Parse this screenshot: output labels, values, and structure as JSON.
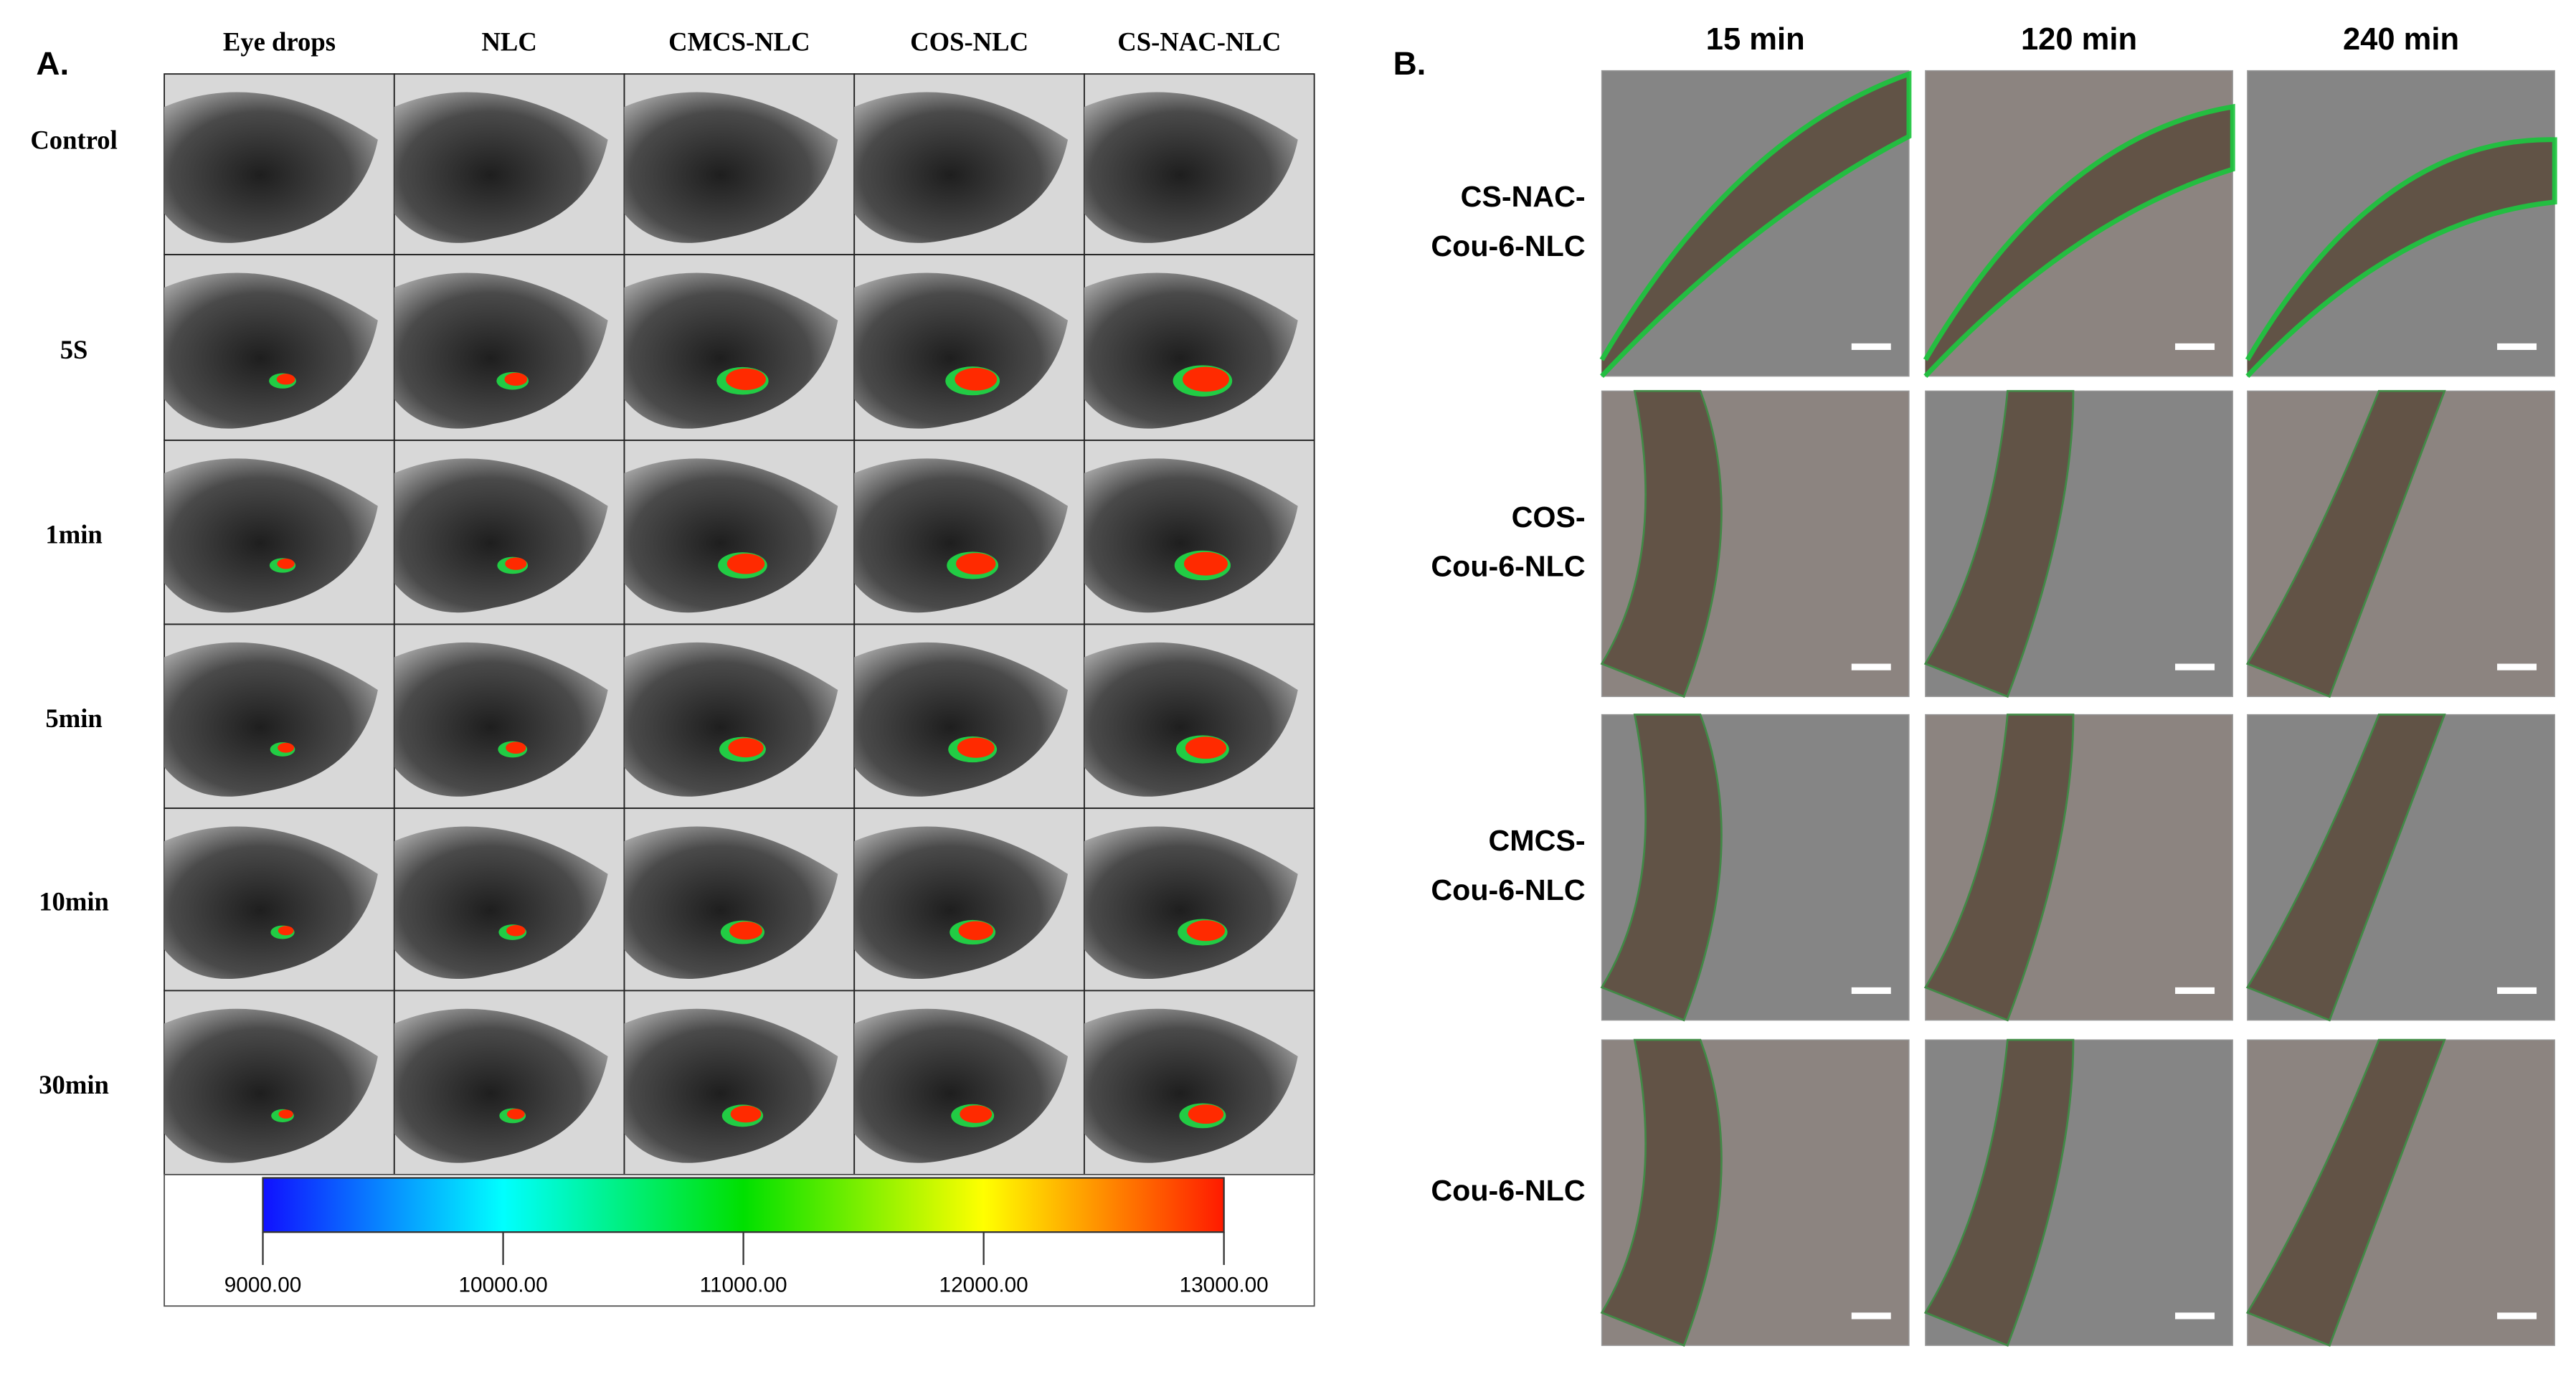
{
  "panel_a": {
    "label": "A.",
    "columns": [
      "Eye drops",
      "NLC",
      "CMCS-NLC",
      "COS-NLC",
      "CS-NAC-NLC"
    ],
    "rows": [
      "Control",
      "5S",
      "1min",
      "5min",
      "10min",
      "30min"
    ],
    "colorbar": {
      "lim": [
        9000,
        13000
      ],
      "ticks": [
        {
          "value": 9000,
          "label": "9000.00"
        },
        {
          "value": 10000,
          "label": "10000.00"
        },
        {
          "value": 11000,
          "label": "11000.00"
        },
        {
          "value": 12000,
          "label": "12000.00"
        },
        {
          "value": 13000,
          "label": "13000.00"
        }
      ]
    }
  },
  "panel_b": {
    "label": "B.",
    "columns": [
      "15 min",
      "120 min",
      "240 min"
    ],
    "rows": [
      [
        "CS-NAC-",
        "Cou-6-NLC"
      ],
      [
        "COS-",
        "Cou-6-NLC"
      ],
      [
        "CMCS-",
        "Cou-6-NLC"
      ],
      [
        "Cou-6-NLC"
      ]
    ]
  }
}
